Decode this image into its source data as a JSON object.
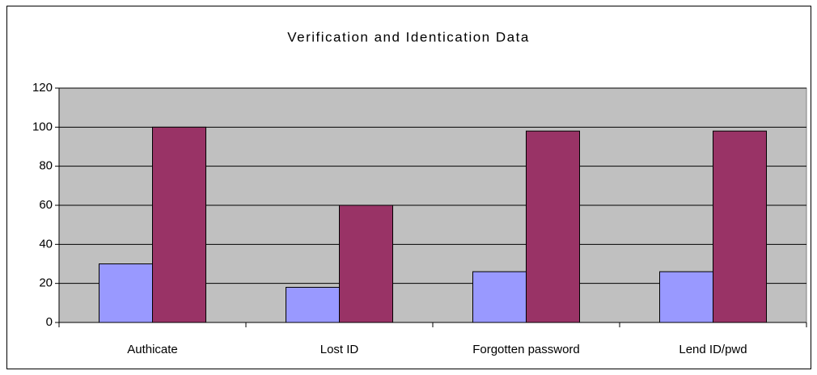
{
  "chart_data": {
    "type": "bar",
    "title": "Verification and Identication Data",
    "categories": [
      "Authicate",
      "Lost ID",
      "Forgotten password",
      "Lend ID/pwd"
    ],
    "series": [
      {
        "color": "#9999ff",
        "values": [
          30,
          18,
          26,
          26
        ]
      },
      {
        "color": "#993366",
        "values": [
          100,
          60,
          98,
          98
        ]
      }
    ],
    "ylim": [
      0,
      120
    ],
    "yticks": [
      0,
      20,
      40,
      60,
      80,
      100,
      120
    ],
    "grid": true
  }
}
